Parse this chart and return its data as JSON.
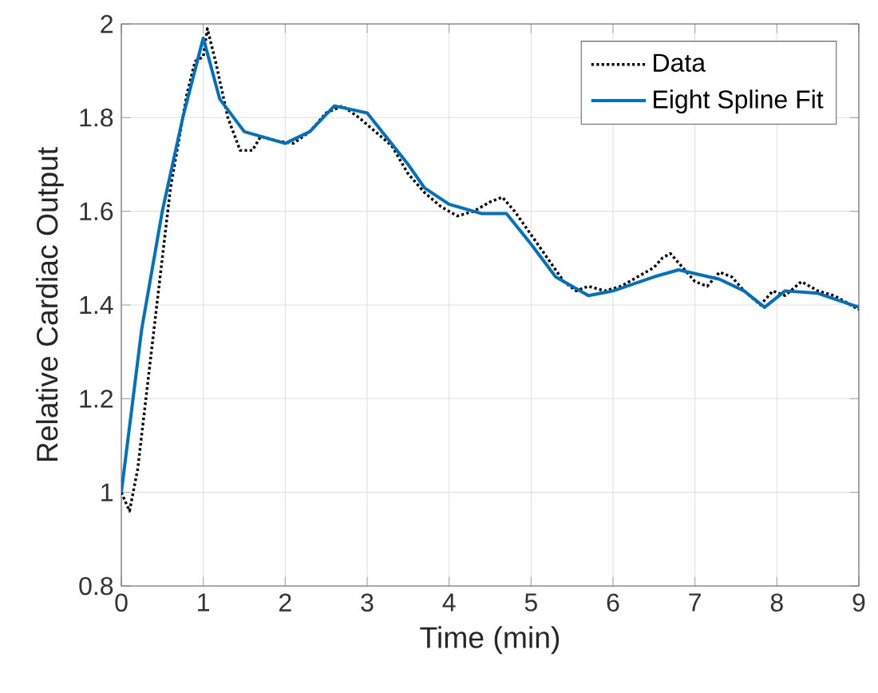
{
  "chart_data": {
    "type": "line",
    "xlabel": "Time (min)",
    "ylabel": "Relative Cardiac Output",
    "xlim": [
      0,
      9
    ],
    "ylim": [
      0.8,
      2
    ],
    "xticks": [
      0,
      1,
      2,
      3,
      4,
      5,
      6,
      7,
      8,
      9
    ],
    "yticks": [
      0.8,
      1,
      1.2,
      1.4,
      1.6,
      1.8,
      2
    ],
    "grid": true,
    "legend": "top right",
    "marker": "none",
    "series": [
      {
        "name": "Data",
        "color": "#000000",
        "line_style": "dotted",
        "x": [
          0,
          0.1,
          0.2,
          0.4,
          0.6,
          0.8,
          0.9,
          1.0,
          1.05,
          1.15,
          1.3,
          1.45,
          1.6,
          1.7,
          1.9,
          2.1,
          2.3,
          2.5,
          2.7,
          2.9,
          3.1,
          3.3,
          3.5,
          3.7,
          3.9,
          4.1,
          4.3,
          4.5,
          4.65,
          4.8,
          5.0,
          5.2,
          5.4,
          5.55,
          5.7,
          5.9,
          6.1,
          6.3,
          6.5,
          6.6,
          6.7,
          6.85,
          7.0,
          7.15,
          7.3,
          7.45,
          7.6,
          7.8,
          7.95,
          8.1,
          8.3,
          8.5,
          8.7,
          8.9,
          9.0
        ],
        "values": [
          1.0,
          0.96,
          1.05,
          1.35,
          1.65,
          1.85,
          1.92,
          1.93,
          1.99,
          1.92,
          1.8,
          1.73,
          1.73,
          1.76,
          1.75,
          1.745,
          1.77,
          1.81,
          1.825,
          1.8,
          1.77,
          1.74,
          1.68,
          1.64,
          1.61,
          1.59,
          1.6,
          1.62,
          1.63,
          1.6,
          1.55,
          1.5,
          1.45,
          1.43,
          1.44,
          1.43,
          1.44,
          1.46,
          1.48,
          1.5,
          1.51,
          1.48,
          1.45,
          1.44,
          1.47,
          1.46,
          1.43,
          1.4,
          1.43,
          1.42,
          1.45,
          1.43,
          1.42,
          1.4,
          1.39
        ]
      },
      {
        "name": "Eight Spline Fit",
        "color": "#0072bd",
        "line_style": "solid",
        "x": [
          0,
          0.25,
          0.5,
          0.75,
          1.0,
          1.2,
          1.5,
          2,
          2.3,
          2.6,
          3,
          3.5,
          3.7,
          4,
          4.4,
          4.7,
          5,
          5.3,
          5.7,
          6,
          6.5,
          6.8,
          7.3,
          7.6,
          7.85,
          8.1,
          8.5,
          9
        ],
        "values": [
          1.0,
          1.35,
          1.6,
          1.8,
          1.97,
          1.84,
          1.77,
          1.745,
          1.77,
          1.825,
          1.81,
          1.7,
          1.65,
          1.615,
          1.595,
          1.595,
          1.53,
          1.46,
          1.42,
          1.43,
          1.46,
          1.475,
          1.455,
          1.43,
          1.395,
          1.43,
          1.425,
          1.395
        ]
      }
    ]
  }
}
